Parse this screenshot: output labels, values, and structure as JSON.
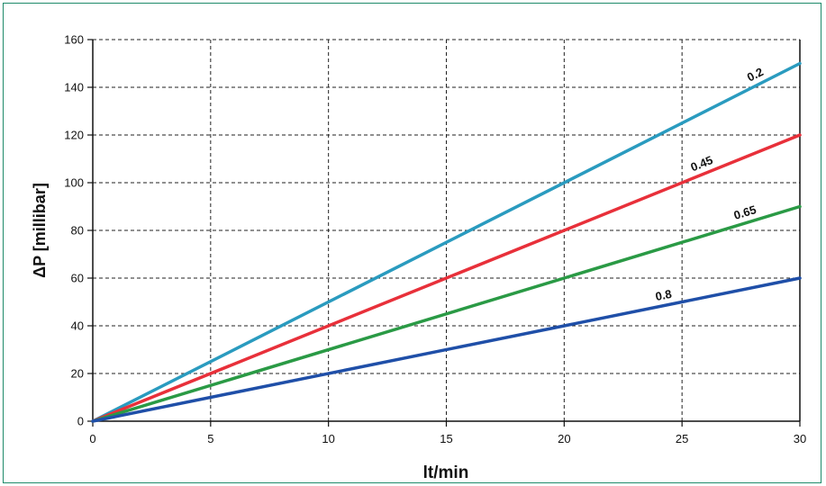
{
  "chart_data": {
    "type": "line",
    "title": "",
    "xlabel": "lt/min",
    "ylabel": "ΔP [millibar]",
    "xlim": [
      0,
      30
    ],
    "ylim": [
      0,
      160
    ],
    "xticks": [
      0,
      5,
      10,
      15,
      20,
      25,
      30
    ],
    "yticks": [
      0,
      20,
      40,
      60,
      80,
      100,
      120,
      140,
      160
    ],
    "grid": true,
    "legend": "none",
    "series": [
      {
        "name": "0.2",
        "color": "#2a9bbf",
        "x": [
          0,
          30
        ],
        "y": [
          0,
          150
        ]
      },
      {
        "name": "0.45",
        "color": "#e8303a",
        "x": [
          0,
          30
        ],
        "y": [
          0,
          120
        ]
      },
      {
        "name": "0.65",
        "color": "#2a9a45",
        "x": [
          0,
          30
        ],
        "y": [
          0,
          90
        ]
      },
      {
        "name": "0.8",
        "color": "#1f4fa8",
        "x": [
          0,
          30
        ],
        "y": [
          0,
          60
        ]
      }
    ],
    "annotations": [
      {
        "text": "0.2",
        "series": 0,
        "at_x": 28.3
      },
      {
        "text": "0.45",
        "series": 1,
        "at_x": 26.0
      },
      {
        "text": "0.65",
        "series": 2,
        "at_x": 27.8
      },
      {
        "text": "0.8",
        "series": 3,
        "at_x": 24.3
      }
    ]
  }
}
